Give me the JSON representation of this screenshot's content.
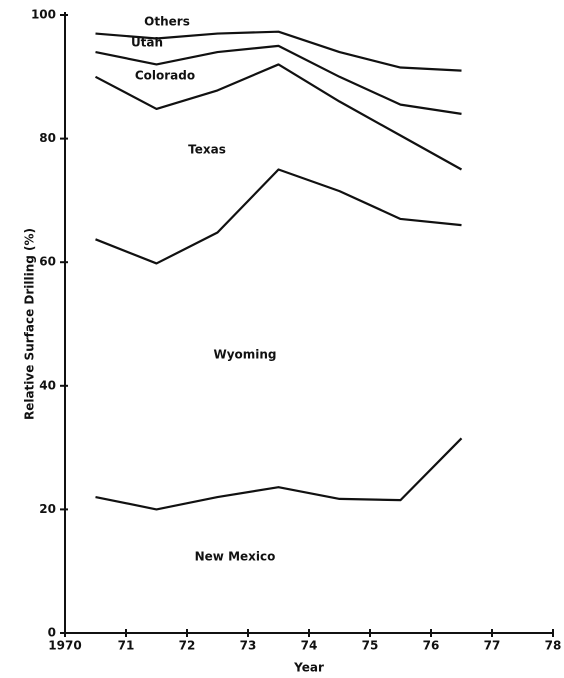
{
  "chart_data": {
    "type": "stacked_line",
    "x_label": "Year",
    "y_label": "Relative Surface Drilling (%)",
    "x": [
      1970.5,
      1971.5,
      1972.5,
      1973.5,
      1974.5,
      1975.5,
      1976.5
    ],
    "series": [
      {
        "name": "New Mexico",
        "color": "#111111",
        "values": [
          22,
          20,
          22,
          23.6,
          21.7,
          21.5,
          31.5
        ]
      },
      {
        "name": "Wyoming",
        "color": "#111111",
        "values": [
          41.7,
          39.8,
          42.8,
          51.4,
          49.8,
          45.5,
          34.5
        ]
      },
      {
        "name": "Texas",
        "color": "#111111",
        "values": [
          26.3,
          25,
          23,
          17,
          14.5,
          13.5,
          9
        ]
      },
      {
        "name": "Colorado",
        "color": "#111111",
        "values": [
          4,
          7.2,
          6.2,
          3,
          4,
          5,
          9
        ]
      },
      {
        "name": "Utah",
        "color": "#111111",
        "values": [
          3,
          4.2,
          3,
          2.3,
          4,
          6,
          7
        ]
      },
      {
        "name": "Others",
        "color": "#111111",
        "values": [
          3,
          3.8,
          3,
          2.7,
          6,
          8.5,
          9
        ]
      }
    ],
    "xlim": [
      1970,
      1978
    ],
    "xticks": [
      1970,
      {
        "value": 1971,
        "label": "71"
      },
      {
        "value": 1972,
        "label": "72"
      },
      {
        "value": 1973,
        "label": "73"
      },
      {
        "value": 1974,
        "label": "74"
      },
      {
        "value": 1975,
        "label": "75"
      },
      {
        "value": 1976,
        "label": "76"
      },
      {
        "value": 1977,
        "label": "77"
      },
      {
        "value": 1978,
        "label": "78"
      }
    ],
    "ylim": [
      0,
      100
    ],
    "yticks": [
      0,
      20,
      40,
      60,
      80,
      100
    ]
  }
}
